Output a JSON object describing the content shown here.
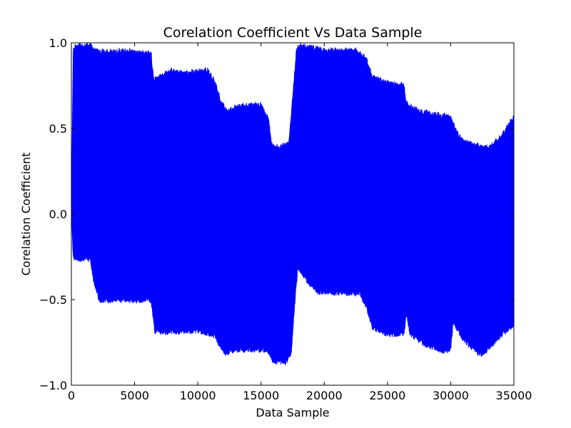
{
  "chart_data": {
    "type": "area",
    "title": "Corelation Coefficient Vs Data Sample",
    "xlabel": "Data Sample",
    "ylabel": "Corelation Coefficient",
    "xlim": [
      0,
      35000
    ],
    "ylim": [
      -1.0,
      1.0
    ],
    "xticks": [
      0,
      5000,
      10000,
      15000,
      20000,
      25000,
      30000,
      35000
    ],
    "xtick_labels": [
      "0",
      "5000",
      "10000",
      "15000",
      "20000",
      "25000",
      "30000",
      "35000"
    ],
    "yticks": [
      -1.0,
      -0.5,
      0.0,
      0.5,
      1.0
    ],
    "ytick_labels": [
      "−1.0",
      "−0.5",
      "0.0",
      "0.5",
      "1.0"
    ],
    "grid": false,
    "color": "#0000ff",
    "series": [
      {
        "upper_envelope": [
          [
            0,
            0.0
          ],
          [
            150,
            0.97
          ],
          [
            300,
            1.0
          ],
          [
            1500,
            1.0
          ],
          [
            1800,
            0.97
          ],
          [
            3000,
            0.96
          ],
          [
            4000,
            0.97
          ],
          [
            5500,
            0.96
          ],
          [
            6300,
            0.96
          ],
          [
            6500,
            0.8
          ],
          [
            7500,
            0.84
          ],
          [
            8000,
            0.86
          ],
          [
            9000,
            0.84
          ],
          [
            10000,
            0.85
          ],
          [
            10700,
            0.86
          ],
          [
            11300,
            0.8
          ],
          [
            11800,
            0.68
          ],
          [
            12300,
            0.62
          ],
          [
            13000,
            0.64
          ],
          [
            14000,
            0.65
          ],
          [
            15000,
            0.66
          ],
          [
            15600,
            0.56
          ],
          [
            15900,
            0.41
          ],
          [
            16500,
            0.41
          ],
          [
            17200,
            0.43
          ],
          [
            17500,
            0.7
          ],
          [
            17800,
            0.97
          ],
          [
            18000,
            1.0
          ],
          [
            19000,
            0.99
          ],
          [
            20000,
            0.97
          ],
          [
            21000,
            0.97
          ],
          [
            22500,
            0.97
          ],
          [
            23300,
            0.93
          ],
          [
            23800,
            0.82
          ],
          [
            25000,
            0.78
          ],
          [
            26300,
            0.77
          ],
          [
            26500,
            0.66
          ],
          [
            27500,
            0.62
          ],
          [
            28500,
            0.6
          ],
          [
            29500,
            0.59
          ],
          [
            30000,
            0.58
          ],
          [
            30500,
            0.49
          ],
          [
            31000,
            0.44
          ],
          [
            32000,
            0.42
          ],
          [
            33000,
            0.4
          ],
          [
            34000,
            0.47
          ],
          [
            35000,
            0.59
          ]
        ],
        "lower_envelope": [
          [
            0,
            0.0
          ],
          [
            150,
            -0.27
          ],
          [
            500,
            -0.28
          ],
          [
            1500,
            -0.28
          ],
          [
            1800,
            -0.42
          ],
          [
            2200,
            -0.52
          ],
          [
            3000,
            -0.52
          ],
          [
            4500,
            -0.52
          ],
          [
            6300,
            -0.52
          ],
          [
            6600,
            -0.7
          ],
          [
            7500,
            -0.71
          ],
          [
            9000,
            -0.7
          ],
          [
            10000,
            -0.7
          ],
          [
            11200,
            -0.72
          ],
          [
            11700,
            -0.78
          ],
          [
            12200,
            -0.83
          ],
          [
            13000,
            -0.81
          ],
          [
            14000,
            -0.81
          ],
          [
            15500,
            -0.81
          ],
          [
            16000,
            -0.88
          ],
          [
            17000,
            -0.88
          ],
          [
            17400,
            -0.82
          ],
          [
            17600,
            -0.6
          ],
          [
            17900,
            -0.33
          ],
          [
            18500,
            -0.4
          ],
          [
            19500,
            -0.47
          ],
          [
            21000,
            -0.48
          ],
          [
            22800,
            -0.48
          ],
          [
            23300,
            -0.55
          ],
          [
            23800,
            -0.68
          ],
          [
            25000,
            -0.72
          ],
          [
            26300,
            -0.72
          ],
          [
            26500,
            -0.6
          ],
          [
            26800,
            -0.72
          ],
          [
            28000,
            -0.78
          ],
          [
            29500,
            -0.82
          ],
          [
            30000,
            -0.8
          ],
          [
            30200,
            -0.65
          ],
          [
            31000,
            -0.75
          ],
          [
            32000,
            -0.82
          ],
          [
            32500,
            -0.84
          ],
          [
            33500,
            -0.76
          ],
          [
            34500,
            -0.69
          ],
          [
            35000,
            -0.66
          ]
        ]
      }
    ]
  }
}
